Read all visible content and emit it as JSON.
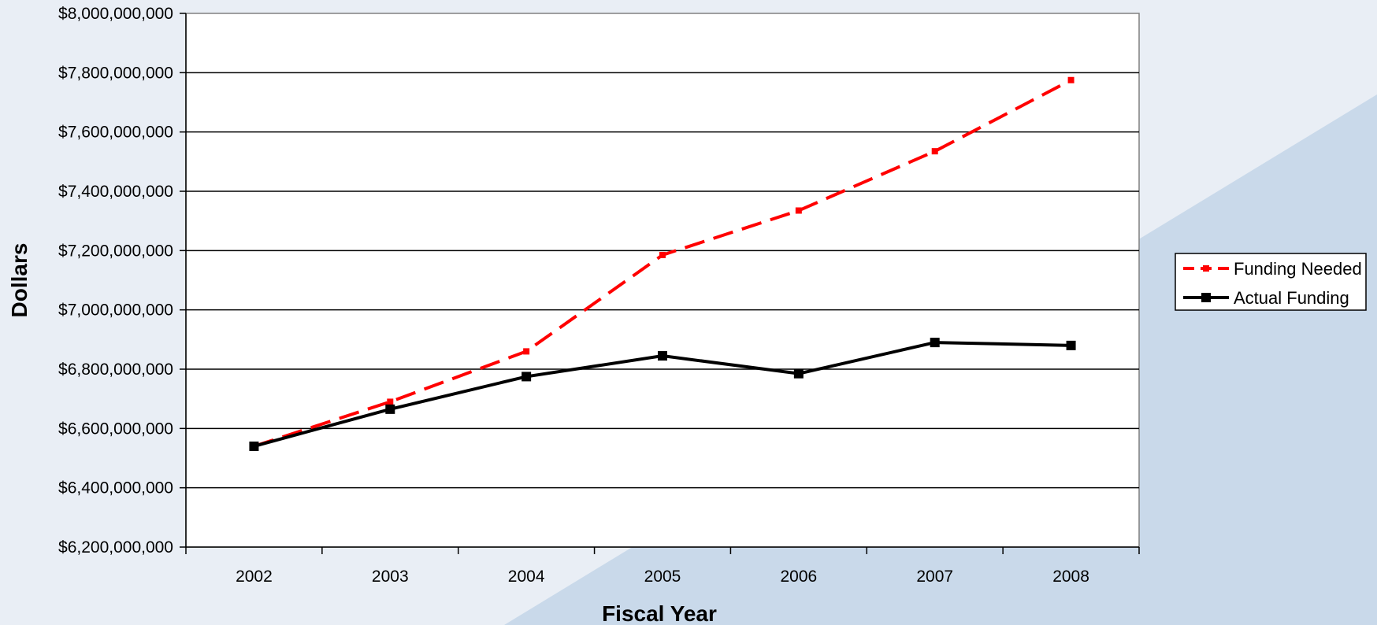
{
  "chart_data": {
    "type": "line",
    "title": "",
    "xlabel": "Fiscal Year",
    "ylabel": "Dollars",
    "categories": [
      "2002",
      "2003",
      "2004",
      "2005",
      "2006",
      "2007",
      "2008"
    ],
    "ylim": [
      6200000000,
      8000000000
    ],
    "yticks": [
      6200000000,
      6400000000,
      6600000000,
      6800000000,
      7000000000,
      7200000000,
      7400000000,
      7600000000,
      7800000000,
      8000000000
    ],
    "ytick_labels": [
      "$6,200,000,000",
      "$6,400,000,000",
      "$6,600,000,000",
      "$6,800,000,000",
      "$7,000,000,000",
      "$7,200,000,000",
      "$7,400,000,000",
      "$7,600,000,000",
      "$7,800,000,000",
      "$8,000,000,000"
    ],
    "grid": true,
    "legend_position": "right",
    "series": [
      {
        "name": "Funding Needed",
        "color": "#ff0000",
        "style": "dashed",
        "values": [
          6540000000,
          6690000000,
          6860000000,
          7185000000,
          7335000000,
          7535000000,
          7775000000
        ]
      },
      {
        "name": "Actual Funding",
        "color": "#000000",
        "style": "solid",
        "values": [
          6540000000,
          6665000000,
          6775000000,
          6845000000,
          6785000000,
          6890000000,
          6880000000
        ]
      }
    ]
  }
}
